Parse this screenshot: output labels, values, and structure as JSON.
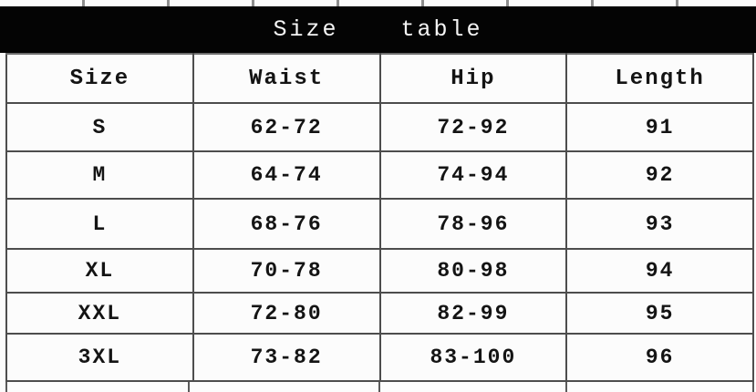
{
  "header": {
    "title": "Size  table"
  },
  "table": {
    "columns": [
      "Size",
      "Waist",
      "Hip",
      "Length"
    ],
    "rows": [
      [
        "S",
        "62-72",
        "72-92",
        "91"
      ],
      [
        "M",
        "64-74",
        "74-94",
        "92"
      ],
      [
        "L",
        "68-76",
        "78-96",
        "93"
      ],
      [
        "XL",
        "70-78",
        "80-98",
        "94"
      ],
      [
        "XXL",
        "72-80",
        "82-99",
        "95"
      ],
      [
        "3XL",
        "73-82",
        "83-100",
        "96"
      ]
    ]
  },
  "colors": {
    "title_bar_background": "#040404",
    "title_text": "#f5f5f5",
    "table_border": "#4d4d4d",
    "cell_text": "#141414",
    "page_background": "#fcfcfc"
  }
}
